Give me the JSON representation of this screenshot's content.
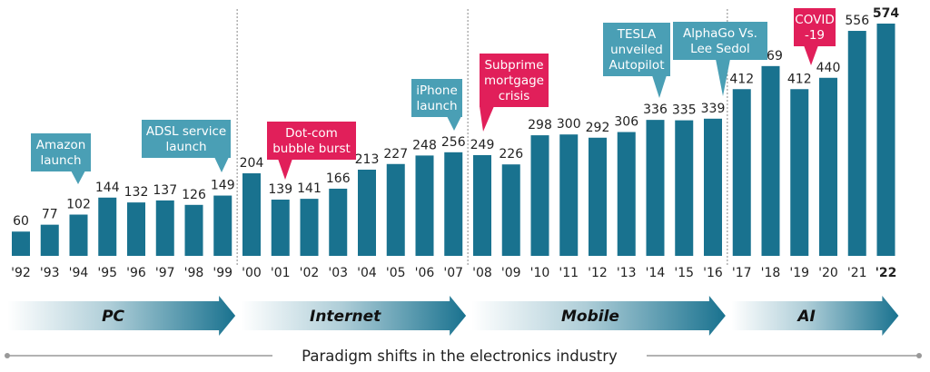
{
  "chart_data": {
    "type": "bar",
    "categories": [
      "'92",
      "'93",
      "'94",
      "'95",
      "'96",
      "'97",
      "'98",
      "'99",
      "'00",
      "'01",
      "'02",
      "'03",
      "'04",
      "'05",
      "'06",
      "'07",
      "'08",
      "'09",
      "'10",
      "'11",
      "'12",
      "'13",
      "'14",
      "'15",
      "'16",
      "'17",
      "'18",
      "'19",
      "'20",
      "'21",
      "'22"
    ],
    "values": [
      60,
      77,
      102,
      144,
      132,
      137,
      126,
      149,
      204,
      139,
      141,
      166,
      213,
      227,
      248,
      256,
      249,
      226,
      298,
      300,
      292,
      306,
      336,
      335,
      339,
      412,
      469,
      412,
      440,
      556,
      574
    ],
    "colors": {
      "bar": "#19728f",
      "annotation_teal": "#4a9fb5",
      "annotation_red": "#e11f5a",
      "era_arrow": "#19728f",
      "divider": "#888888",
      "baseline": "#999999"
    },
    "eras": [
      {
        "label": "PC",
        "from": "'92",
        "to": "'99"
      },
      {
        "label": "Internet",
        "from": "'00",
        "to": "'07"
      },
      {
        "label": "Mobile",
        "from": "'08",
        "to": "'16"
      },
      {
        "label": "AI",
        "from": "'17",
        "to": "'22"
      }
    ],
    "annotations": [
      {
        "lines": [
          "Amazon",
          "launch"
        ],
        "target": "'94",
        "color": "teal"
      },
      {
        "lines": [
          "ADSL service",
          "launch"
        ],
        "target": "'99",
        "color": "teal"
      },
      {
        "lines": [
          "Dot-com",
          "bubble burst"
        ],
        "target": "'01",
        "color": "red"
      },
      {
        "lines": [
          "iPhone",
          "launch"
        ],
        "target": "'07",
        "color": "teal"
      },
      {
        "lines": [
          "Subprime",
          "mortgage",
          "crisis"
        ],
        "target": "'08",
        "color": "red"
      },
      {
        "lines": [
          "TESLA",
          "unveiled",
          "Autopilot"
        ],
        "target": "'14",
        "color": "teal"
      },
      {
        "lines": [
          "AlphaGo Vs.",
          "Lee Sedol"
        ],
        "target": "'16",
        "color": "teal"
      },
      {
        "lines": [
          "COVID",
          "-19"
        ],
        "target": "'19",
        "color": "red"
      }
    ],
    "footer": "Paradigm shifts in the electronics industry",
    "grid": false,
    "legend": "none"
  }
}
